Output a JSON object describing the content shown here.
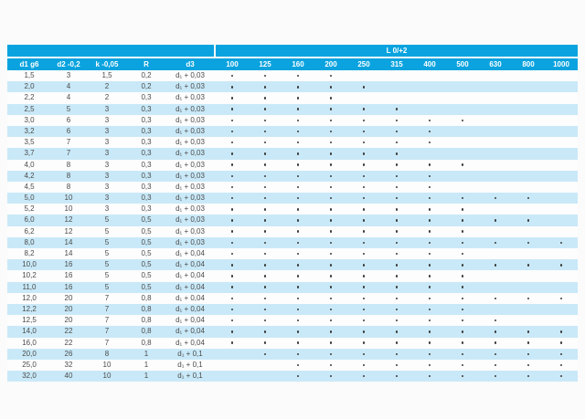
{
  "theme": {
    "cyan": "#0aa3df",
    "stripe": "#c9e9f8",
    "text": "#4b4b4b"
  },
  "table": {
    "group_header": "L 0/+2",
    "columns_left": [
      "d1 g6",
      "d2 -0,2",
      "k -0,05",
      "R",
      "d3"
    ],
    "length_columns": [
      "100",
      "125",
      "160",
      "200",
      "250",
      "315",
      "400",
      "500",
      "630",
      "800",
      "1000"
    ],
    "rows": [
      {
        "d1": "1,5",
        "d2": "3",
        "k": "1,5",
        "R": "0,2",
        "d3": "d₁ + 0,03",
        "marks": [
          1,
          1,
          1,
          1,
          0,
          0,
          0,
          0,
          0,
          0,
          0
        ]
      },
      {
        "d1": "2,0",
        "d2": "4",
        "k": "2",
        "R": "0,2",
        "d3": "d₁ + 0,03",
        "marks": [
          1,
          1,
          1,
          1,
          1,
          0,
          0,
          0,
          0,
          0,
          0
        ]
      },
      {
        "d1": "2,2",
        "d2": "4",
        "k": "2",
        "R": "0,3",
        "d3": "d₁ + 0,03",
        "marks": [
          1,
          1,
          1,
          1,
          0,
          0,
          0,
          0,
          0,
          0,
          0
        ]
      },
      {
        "d1": "2,5",
        "d2": "5",
        "k": "3",
        "R": "0,3",
        "d3": "d₁ + 0,03",
        "marks": [
          1,
          1,
          1,
          1,
          1,
          1,
          0,
          0,
          0,
          0,
          0
        ]
      },
      {
        "d1": "3,0",
        "d2": "6",
        "k": "3",
        "R": "0,3",
        "d3": "d₁ + 0,03",
        "marks": [
          1,
          1,
          1,
          1,
          1,
          1,
          1,
          1,
          0,
          0,
          0
        ]
      },
      {
        "d1": "3,2",
        "d2": "6",
        "k": "3",
        "R": "0,3",
        "d3": "d₁ + 0,03",
        "marks": [
          1,
          1,
          1,
          1,
          1,
          1,
          1,
          0,
          0,
          0,
          0
        ]
      },
      {
        "d1": "3,5",
        "d2": "7",
        "k": "3",
        "R": "0,3",
        "d3": "d₁ + 0,03",
        "marks": [
          1,
          1,
          1,
          1,
          1,
          1,
          1,
          0,
          0,
          0,
          0
        ]
      },
      {
        "d1": "3,7",
        "d2": "7",
        "k": "3",
        "R": "0,3",
        "d3": "d₁ + 0,03",
        "marks": [
          1,
          1,
          1,
          1,
          1,
          1,
          0,
          0,
          0,
          0,
          0
        ]
      },
      {
        "d1": "4,0",
        "d2": "8",
        "k": "3",
        "R": "0,3",
        "d3": "d₁ + 0,03",
        "marks": [
          1,
          1,
          1,
          1,
          1,
          1,
          1,
          1,
          0,
          0,
          0
        ]
      },
      {
        "d1": "4,2",
        "d2": "8",
        "k": "3",
        "R": "0,3",
        "d3": "d₁ + 0,03",
        "marks": [
          1,
          1,
          1,
          1,
          1,
          1,
          1,
          0,
          0,
          0,
          0
        ]
      },
      {
        "d1": "4,5",
        "d2": "8",
        "k": "3",
        "R": "0,3",
        "d3": "d₁ + 0,03",
        "marks": [
          1,
          1,
          1,
          1,
          1,
          1,
          1,
          0,
          0,
          0,
          0
        ]
      },
      {
        "d1": "5,0",
        "d2": "10",
        "k": "3",
        "R": "0,3",
        "d3": "d₁ + 0,03",
        "marks": [
          1,
          1,
          1,
          1,
          1,
          1,
          1,
          1,
          1,
          1,
          0
        ]
      },
      {
        "d1": "5,2",
        "d2": "10",
        "k": "3",
        "R": "0,3",
        "d3": "d₁ + 0,03",
        "marks": [
          1,
          1,
          1,
          1,
          1,
          1,
          1,
          1,
          0,
          0,
          0
        ]
      },
      {
        "d1": "6,0",
        "d2": "12",
        "k": "5",
        "R": "0,5",
        "d3": "d₁ + 0,03",
        "marks": [
          1,
          1,
          1,
          1,
          1,
          1,
          1,
          1,
          1,
          1,
          0
        ]
      },
      {
        "d1": "6,2",
        "d2": "12",
        "k": "5",
        "R": "0,5",
        "d3": "d₁ + 0,03",
        "marks": [
          1,
          1,
          1,
          1,
          1,
          1,
          1,
          1,
          0,
          0,
          0
        ]
      },
      {
        "d1": "8,0",
        "d2": "14",
        "k": "5",
        "R": "0,5",
        "d3": "d₁ + 0,03",
        "marks": [
          1,
          1,
          1,
          1,
          1,
          1,
          1,
          1,
          1,
          1,
          1
        ]
      },
      {
        "d1": "8,2",
        "d2": "14",
        "k": "5",
        "R": "0,5",
        "d3": "d₁ + 0,04",
        "marks": [
          1,
          1,
          1,
          1,
          1,
          1,
          1,
          1,
          0,
          0,
          0
        ]
      },
      {
        "d1": "10,0",
        "d2": "16",
        "k": "5",
        "R": "0,5",
        "d3": "d₁ + 0,04",
        "marks": [
          1,
          1,
          1,
          1,
          1,
          1,
          1,
          1,
          1,
          1,
          1
        ]
      },
      {
        "d1": "10,2",
        "d2": "16",
        "k": "5",
        "R": "0,5",
        "d3": "d₁ + 0,04",
        "marks": [
          1,
          1,
          1,
          1,
          1,
          1,
          1,
          1,
          0,
          0,
          0
        ]
      },
      {
        "d1": "11,0",
        "d2": "16",
        "k": "5",
        "R": "0,5",
        "d3": "d₁ + 0,04",
        "marks": [
          1,
          1,
          1,
          1,
          1,
          1,
          1,
          1,
          0,
          0,
          0
        ]
      },
      {
        "d1": "12,0",
        "d2": "20",
        "k": "7",
        "R": "0,8",
        "d3": "d₁ + 0,04",
        "marks": [
          1,
          1,
          1,
          1,
          1,
          1,
          1,
          1,
          1,
          1,
          1
        ]
      },
      {
        "d1": "12,2",
        "d2": "20",
        "k": "7",
        "R": "0,8",
        "d3": "d₁ + 0,04",
        "marks": [
          1,
          1,
          1,
          1,
          1,
          1,
          1,
          1,
          0,
          0,
          0
        ]
      },
      {
        "d1": "12,5",
        "d2": "20",
        "k": "7",
        "R": "0,8",
        "d3": "d₁ + 0,04",
        "marks": [
          1,
          1,
          1,
          1,
          1,
          1,
          1,
          1,
          1,
          0,
          0
        ]
      },
      {
        "d1": "14,0",
        "d2": "22",
        "k": "7",
        "R": "0,8",
        "d3": "d₁ + 0,04",
        "marks": [
          1,
          1,
          1,
          1,
          1,
          1,
          1,
          1,
          1,
          1,
          1
        ]
      },
      {
        "d1": "16,0",
        "d2": "22",
        "k": "7",
        "R": "0,8",
        "d3": "d₁ + 0,04",
        "marks": [
          1,
          1,
          1,
          1,
          1,
          1,
          1,
          1,
          1,
          1,
          1
        ]
      },
      {
        "d1": "20,0",
        "d2": "26",
        "k": "8",
        "R": "1",
        "d3": "d₁ + 0,1",
        "marks": [
          0,
          1,
          1,
          1,
          1,
          1,
          1,
          1,
          1,
          1,
          1
        ]
      },
      {
        "d1": "25,0",
        "d2": "32",
        "k": "10",
        "R": "1",
        "d3": "d₁ + 0,1",
        "marks": [
          0,
          0,
          1,
          1,
          1,
          1,
          1,
          1,
          1,
          1,
          1
        ]
      },
      {
        "d1": "32,0",
        "d2": "40",
        "k": "10",
        "R": "1",
        "d3": "d₁ + 0,1",
        "marks": [
          0,
          0,
          1,
          1,
          1,
          1,
          1,
          1,
          1,
          1,
          1
        ]
      }
    ]
  }
}
